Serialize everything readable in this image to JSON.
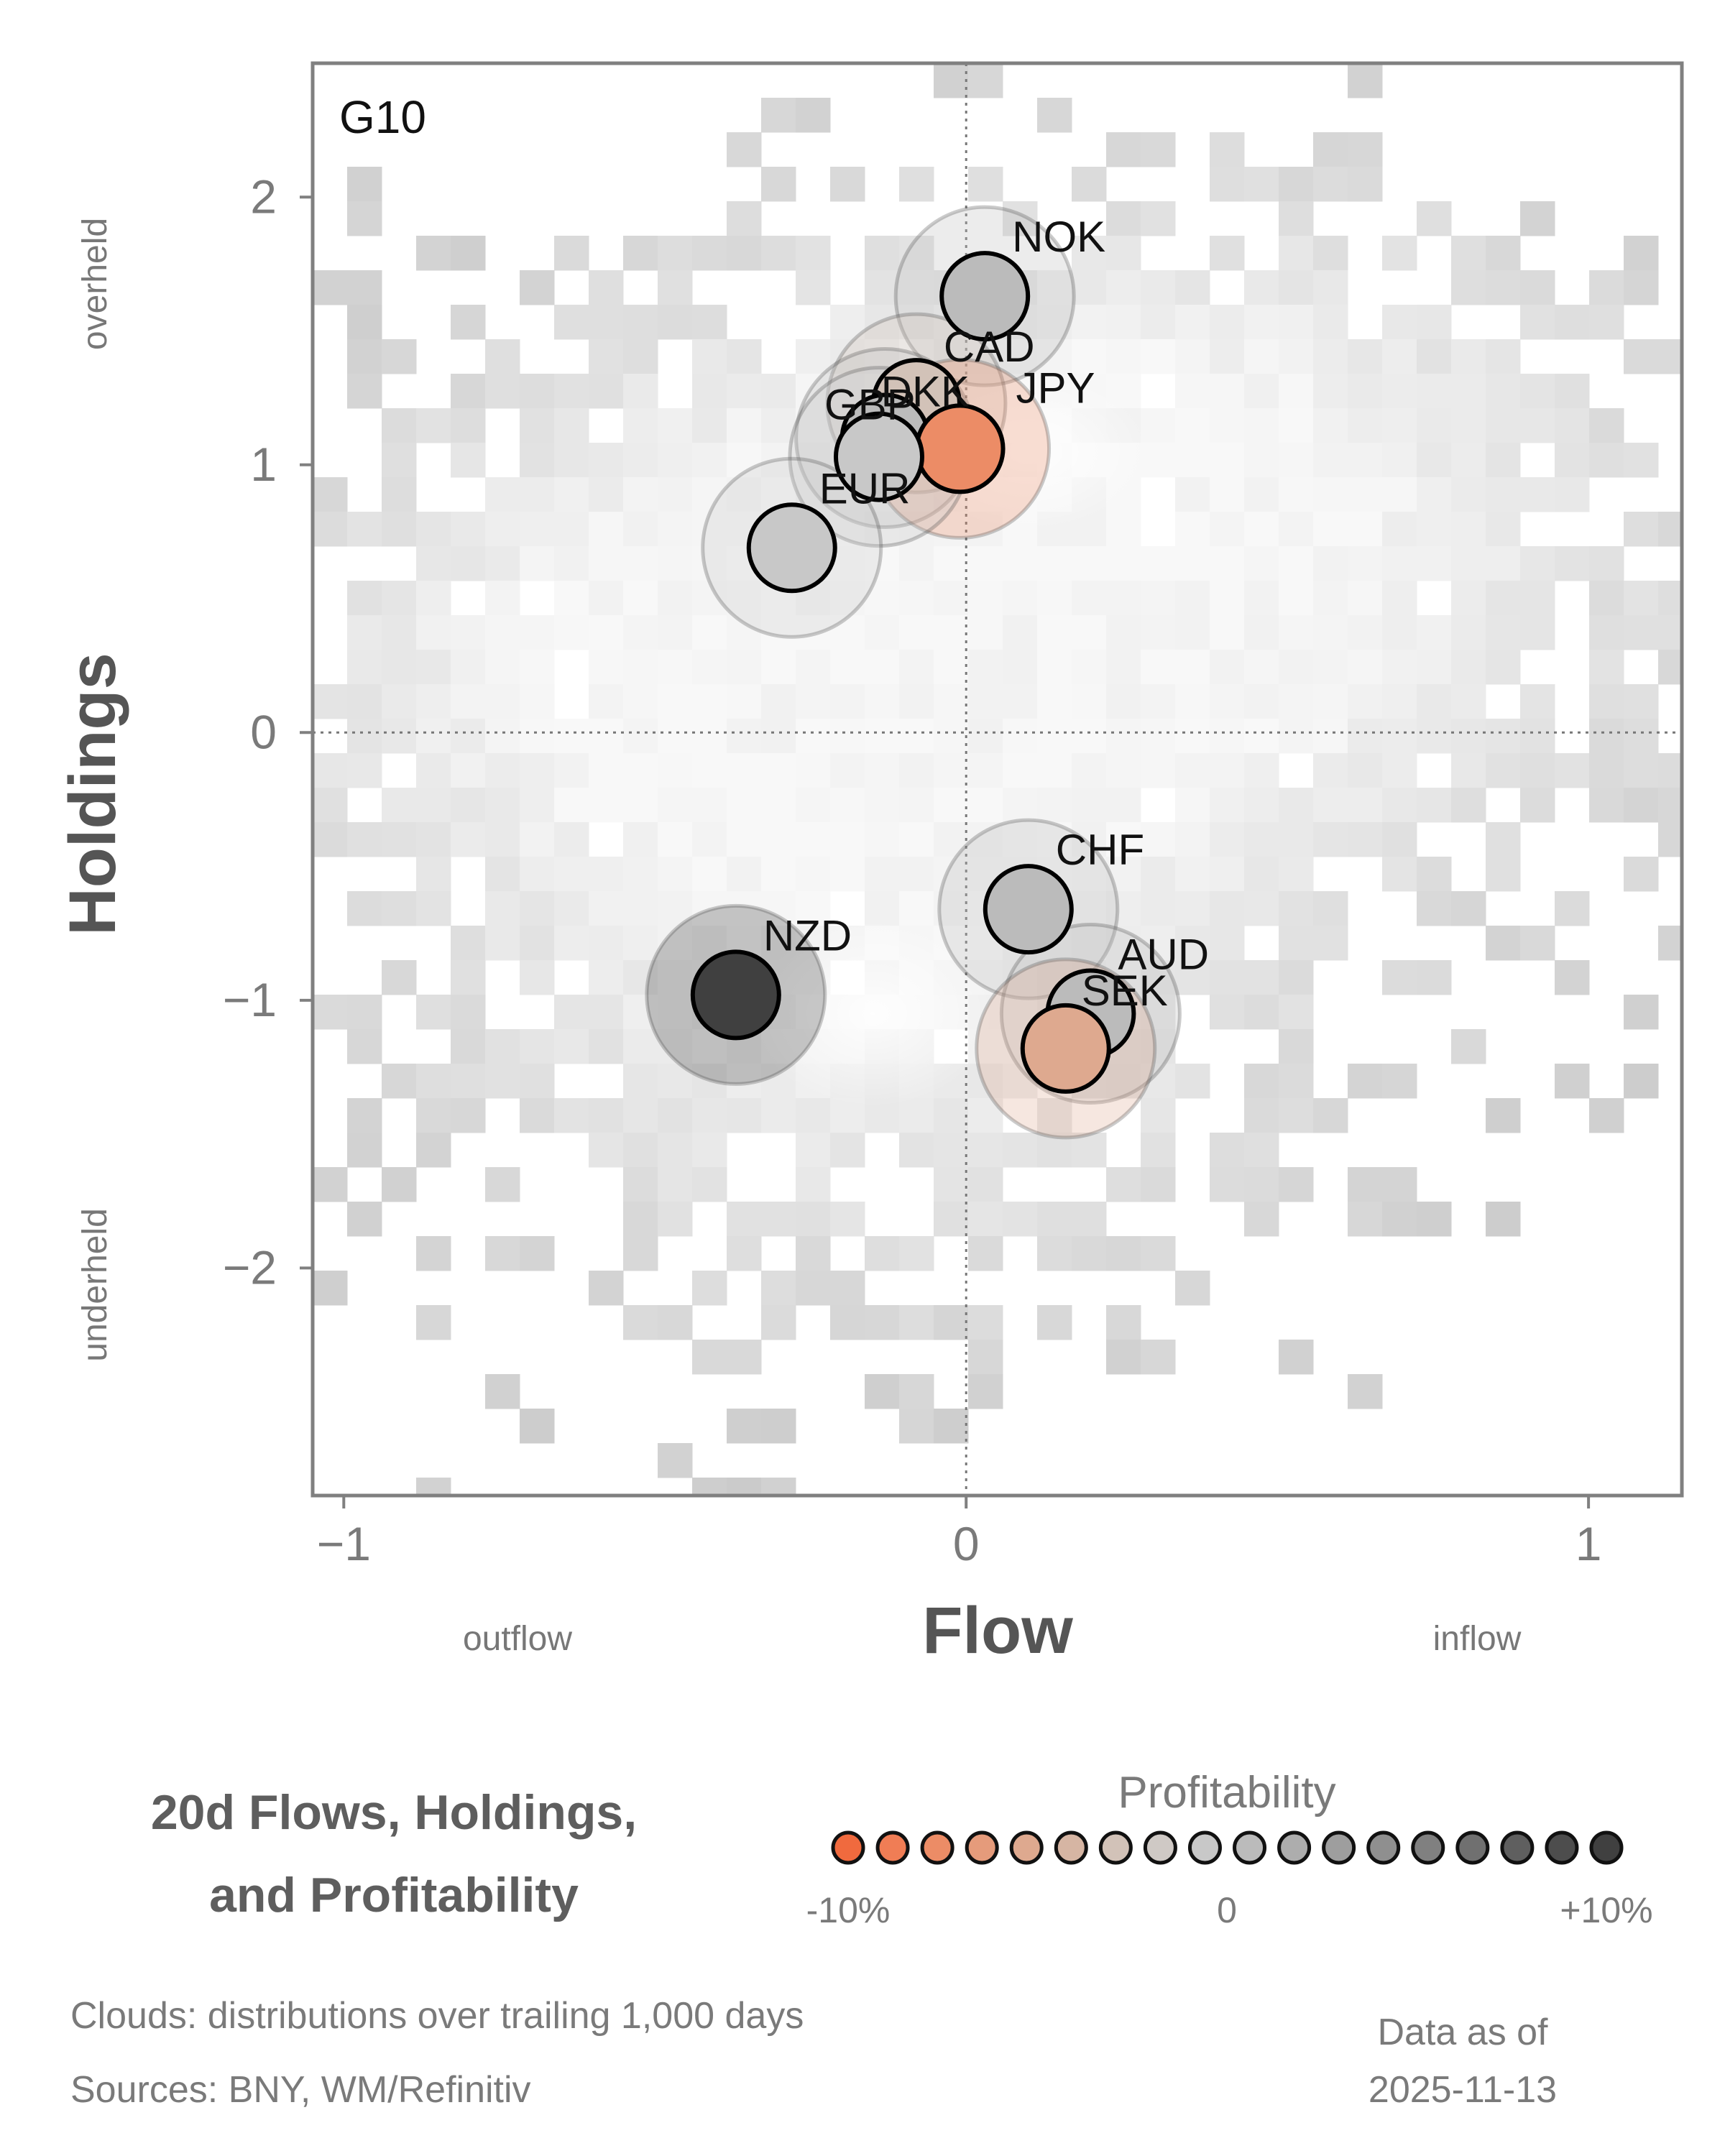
{
  "chart_data": {
    "type": "scatter",
    "panel_label": "G10",
    "xlabel": "Flow",
    "ylabel": "Holdings",
    "x_side_labels": {
      "left": "outflow",
      "right": "inflow"
    },
    "y_side_labels": {
      "top": "overheld",
      "bottom": "underheld"
    },
    "xlim": [
      -1.05,
      1.15
    ],
    "ylim": [
      -2.85,
      2.5
    ],
    "x_ticks": [
      -1,
      0,
      1
    ],
    "x_tick_labels": [
      "−1",
      "0",
      "1"
    ],
    "y_ticks": [
      -2,
      -1,
      0,
      1,
      2
    ],
    "y_tick_labels": [
      "−2",
      "−1",
      "0",
      "1",
      "2"
    ],
    "reference_lines": {
      "x": 0,
      "y": 0
    },
    "background": "heatmap clouds: distributions over trailing 1,000 days",
    "points": [
      {
        "label": "NOK",
        "x": 0.03,
        "y": 1.63,
        "profitability": 0.0
      },
      {
        "label": "CAD",
        "x": -0.08,
        "y": 1.23,
        "profitability": -3.0
      },
      {
        "label": "DKK",
        "x": -0.13,
        "y": 1.1,
        "profitability": 0.5
      },
      {
        "label": "JPY",
        "x": -0.01,
        "y": 1.06,
        "profitability": -7.5
      },
      {
        "label": "GBP",
        "x": -0.14,
        "y": 1.03,
        "profitability": -0.8
      },
      {
        "label": "EUR",
        "x": -0.28,
        "y": 0.69,
        "profitability": -1.0
      },
      {
        "label": "CHF",
        "x": 0.1,
        "y": -0.66,
        "profitability": 0.0
      },
      {
        "label": "NZD",
        "x": -0.37,
        "y": -0.98,
        "profitability": 10.0
      },
      {
        "label": "AUD",
        "x": 0.2,
        "y": -1.05,
        "profitability": 0.2
      },
      {
        "label": "SEK",
        "x": 0.16,
        "y": -1.18,
        "profitability": -5.5
      }
    ],
    "colorbar": {
      "title": "Profitability",
      "tick_labels": [
        "-10%",
        "0",
        "+10%"
      ],
      "min": -10,
      "max": 10,
      "colors": [
        "#f06a3e",
        "#f07d55",
        "#ec8c66",
        "#e59b7b",
        "#dea98f",
        "#d6b5a3",
        "#d2c2b8",
        "#cfc9c5",
        "#c8c8c8",
        "#bbbbbb",
        "#adadad",
        "#9e9e9e",
        "#8f8f8f",
        "#808080",
        "#707070",
        "#5f5f5f",
        "#4d4d4d",
        "#404040"
      ]
    }
  },
  "title": {
    "line1": "20d Flows, Holdings,",
    "line2": "and Profitability"
  },
  "footer": {
    "clouds_note": "Clouds:  distributions over trailing 1,000 days",
    "sources": "Sources:  BNY, WM/Refinitiv",
    "data_as_of_label": "Data as of",
    "data_as_of_date": "2025-11-13"
  }
}
